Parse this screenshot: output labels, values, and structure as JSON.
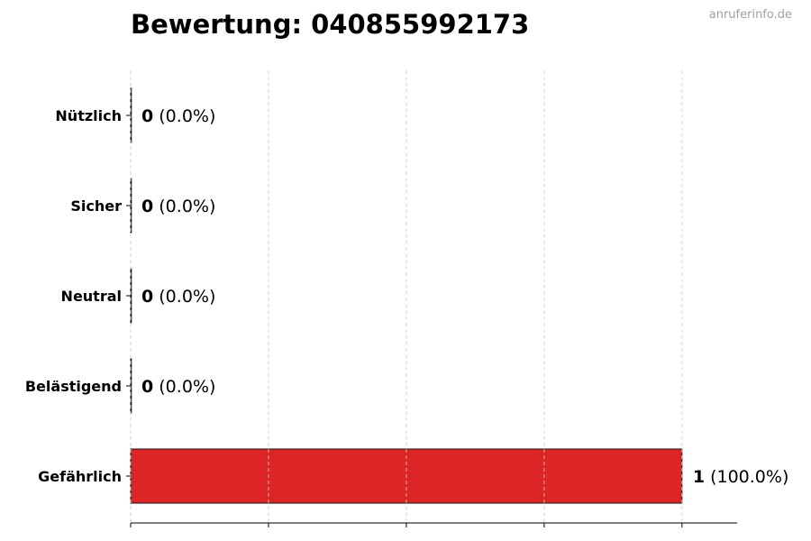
{
  "chart_data": {
    "type": "bar",
    "orientation": "horizontal",
    "title": "Bewertung: 040855992173",
    "categories": [
      "Nützlich",
      "Sicher",
      "Neutral",
      "Belästigend",
      "Gefährlich"
    ],
    "values": [
      0,
      0,
      0,
      0,
      1
    ],
    "value_labels": [
      {
        "count": "0",
        "percent": "(0.0%)"
      },
      {
        "count": "0",
        "percent": "(0.0%)"
      },
      {
        "count": "0",
        "percent": "(0.0%)"
      },
      {
        "count": "0",
        "percent": "(0.0%)"
      },
      {
        "count": "1",
        "percent": "(100.0%)"
      }
    ],
    "bar_color": "#dc2626",
    "xlim": [
      0,
      1.1
    ],
    "xticks": [
      0,
      0.25,
      0.5,
      0.75,
      1.0
    ],
    "xtick_labels_shown": false,
    "grid": "x, dashed",
    "xlabel": "",
    "ylabel": ""
  },
  "watermark": "anruferinfo.de"
}
